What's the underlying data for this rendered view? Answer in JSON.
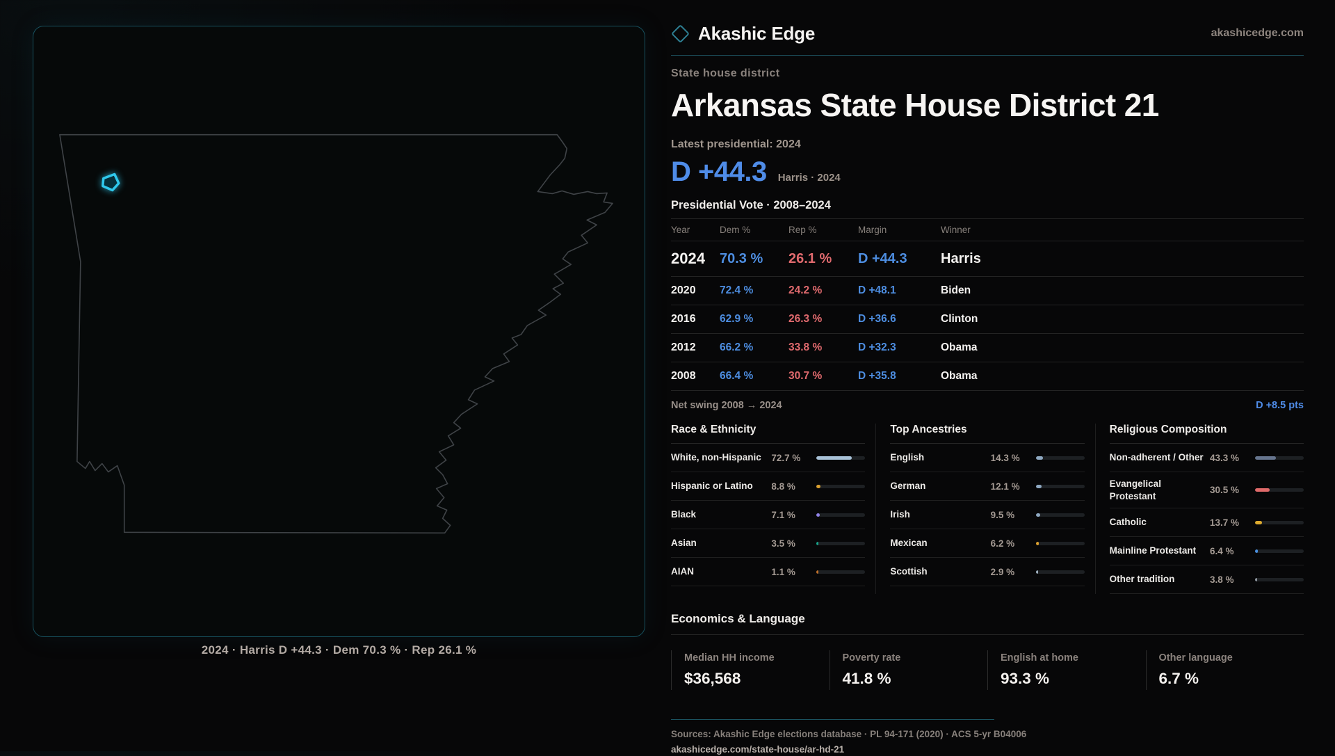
{
  "brand": {
    "name": "Akashic Edge",
    "site": "akashicedge.com"
  },
  "page": {
    "kicker": "State house district",
    "title": "Arkansas State House District 21",
    "latest_label": "Latest presidential: 2024",
    "headline_margin": "D +44.3",
    "headline_context": "Harris · 2024"
  },
  "map": {
    "caption": "2024 · Harris D +44.3 · Dem 70.3 % · Rep 26.1 %",
    "highlight_color": "#2fc8ec"
  },
  "vote_table": {
    "title": "Presidential Vote · 2008–2024",
    "columns": [
      "Year",
      "Dem %",
      "Rep %",
      "Margin",
      "Winner"
    ],
    "rows": [
      {
        "year": "2024",
        "dem": "70.3 %",
        "rep": "26.1 %",
        "margin": "D +44.3",
        "winner": "Harris"
      },
      {
        "year": "2020",
        "dem": "72.4 %",
        "rep": "24.2 %",
        "margin": "D +48.1",
        "winner": "Biden"
      },
      {
        "year": "2016",
        "dem": "62.9 %",
        "rep": "26.3 %",
        "margin": "D +36.6",
        "winner": "Clinton"
      },
      {
        "year": "2012",
        "dem": "66.2 %",
        "rep": "33.8 %",
        "margin": "D +32.3",
        "winner": "Obama"
      },
      {
        "year": "2008",
        "dem": "66.4 %",
        "rep": "30.7 %",
        "margin": "D +35.8",
        "winner": "Obama"
      }
    ],
    "net_swing_label": "Net swing 2008 → 2024",
    "net_swing_value": "D +8.5 pts"
  },
  "demographics": [
    {
      "title": "Race & Ethnicity",
      "items": [
        {
          "label": "White, non-Hispanic",
          "value": "72.7 %",
          "pct": 72.7,
          "color": "#a9c2d8"
        },
        {
          "label": "Hispanic or Latino",
          "value": "8.8 %",
          "pct": 8.8,
          "color": "#dba02f"
        },
        {
          "label": "Black",
          "value": "7.1 %",
          "pct": 7.1,
          "color": "#9183e8"
        },
        {
          "label": "Asian",
          "value": "3.5 %",
          "pct": 3.5,
          "color": "#17a58a"
        },
        {
          "label": "AIAN",
          "value": "1.1 %",
          "pct": 1.1,
          "color": "#c0702a"
        }
      ]
    },
    {
      "title": "Top Ancestries",
      "items": [
        {
          "label": "English",
          "value": "14.3 %",
          "pct": 14.3,
          "color": "#8fa9c2"
        },
        {
          "label": "German",
          "value": "12.1 %",
          "pct": 12.1,
          "color": "#8fa9c2"
        },
        {
          "label": "Irish",
          "value": "9.5 %",
          "pct": 9.5,
          "color": "#8fa9c2"
        },
        {
          "label": "Mexican",
          "value": "6.2 %",
          "pct": 6.2,
          "color": "#dba02f"
        },
        {
          "label": "Scottish",
          "value": "2.9 %",
          "pct": 2.9,
          "color": "#9fb0bf"
        }
      ]
    },
    {
      "title": "Religious Composition",
      "items": [
        {
          "label": "Non-adherent / Other",
          "value": "43.3 %",
          "pct": 43.3,
          "color": "#66758e"
        },
        {
          "label": "Evangelical Protestant",
          "value": "30.5 %",
          "pct": 30.5,
          "color": "#e06a6a"
        },
        {
          "label": "Catholic",
          "value": "13.7 %",
          "pct": 13.7,
          "color": "#ddaa2e"
        },
        {
          "label": "Mainline Protestant",
          "value": "6.4 %",
          "pct": 6.4,
          "color": "#4a90e0"
        },
        {
          "label": "Other tradition",
          "value": "3.8 %",
          "pct": 3.8,
          "color": "#8e969e"
        }
      ]
    }
  ],
  "economics": {
    "title": "Economics & Language",
    "stats": [
      {
        "label": "Median HH income",
        "value": "$36,568"
      },
      {
        "label": "Poverty rate",
        "value": "41.8 %"
      },
      {
        "label": "English at home",
        "value": "93.3 %"
      },
      {
        "label": "Other language",
        "value": "6.7 %"
      }
    ]
  },
  "footer": {
    "sources": "Sources: Akashic Edge elections database · PL 94-171 (2020) · ACS 5-yr B04006",
    "permalink": "akashicedge.com/state-house/ar-hd-21"
  }
}
